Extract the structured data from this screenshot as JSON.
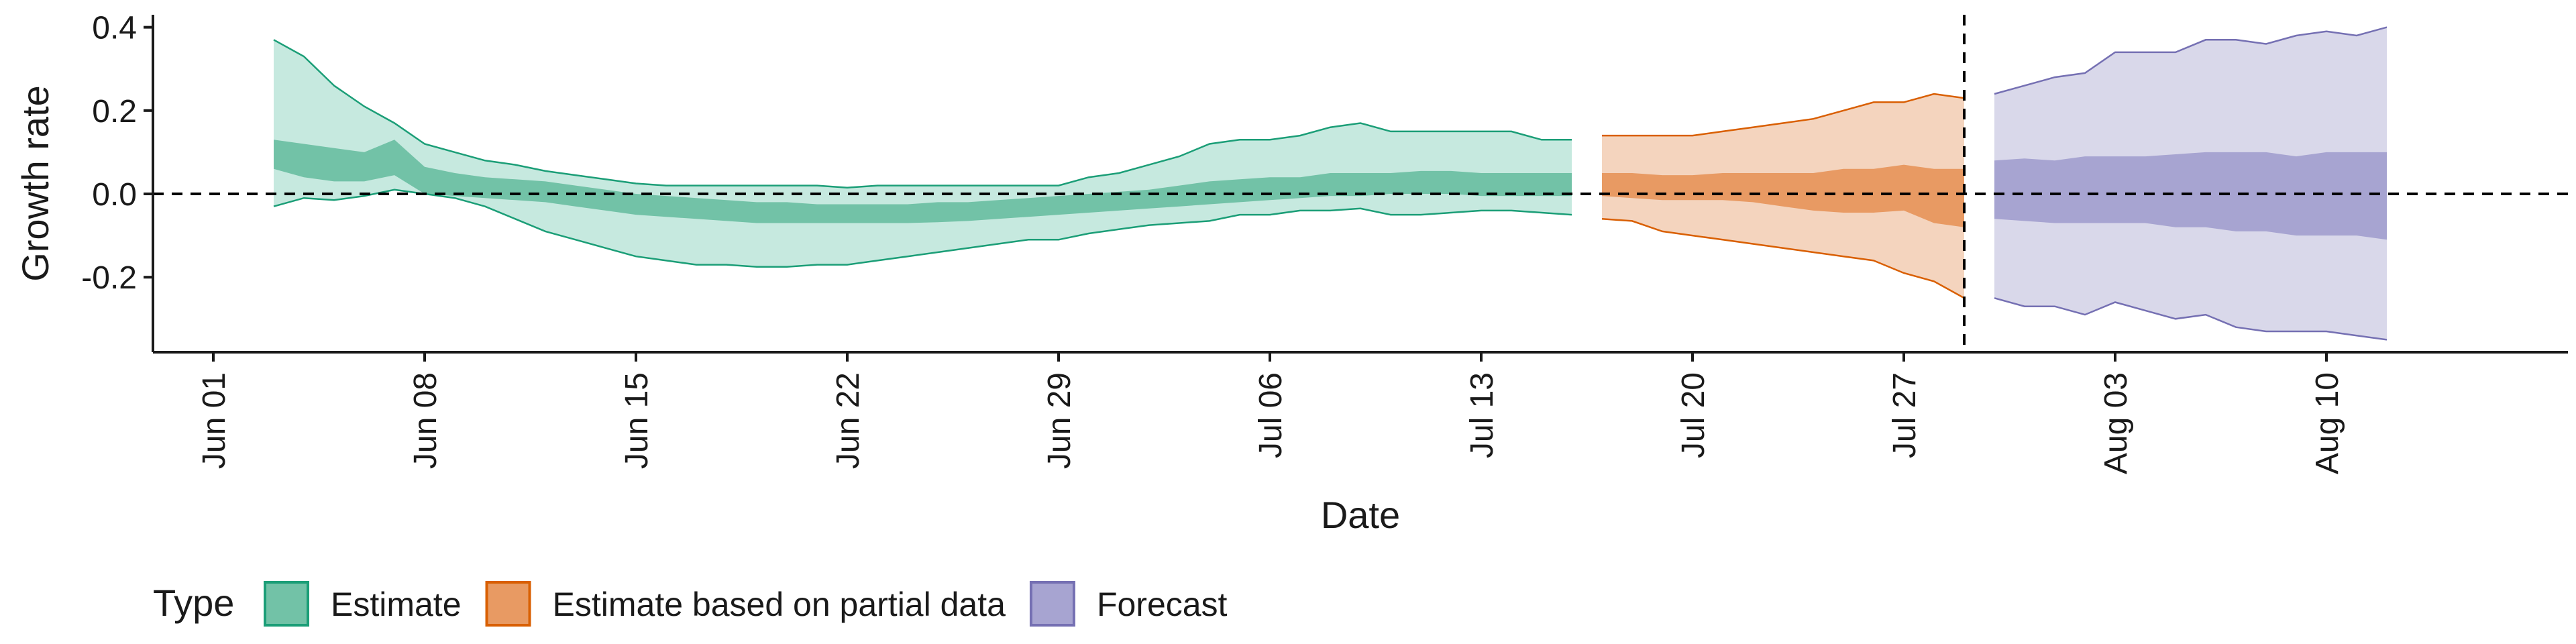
{
  "chart_data": {
    "type": "area",
    "xlabel": "Date",
    "ylabel": "Growth rate",
    "x_scale": "date",
    "xlim": [
      "2020-05-30",
      "2020-08-18"
    ],
    "ylim": [
      -0.38,
      0.43
    ],
    "x_ticks": [
      {
        "date": "2020-06-01",
        "label": "Jun 01"
      },
      {
        "date": "2020-06-08",
        "label": "Jun 08"
      },
      {
        "date": "2020-06-15",
        "label": "Jun 15"
      },
      {
        "date": "2020-06-22",
        "label": "Jun 22"
      },
      {
        "date": "2020-06-29",
        "label": "Jun 29"
      },
      {
        "date": "2020-07-06",
        "label": "Jul 06"
      },
      {
        "date": "2020-07-13",
        "label": "Jul 13"
      },
      {
        "date": "2020-07-20",
        "label": "Jul 20"
      },
      {
        "date": "2020-07-27",
        "label": "Jul 27"
      },
      {
        "date": "2020-08-03",
        "label": "Aug 03"
      },
      {
        "date": "2020-08-10",
        "label": "Aug 10"
      }
    ],
    "y_ticks": [
      {
        "value": 0.4,
        "label": "0.4"
      },
      {
        "value": 0.2,
        "label": "0.2"
      },
      {
        "value": 0.0,
        "label": "0.0"
      },
      {
        "value": -0.2,
        "label": "-0.2"
      }
    ],
    "reference_lines": [
      {
        "axis": "y",
        "value": 0.0,
        "style": "dashed"
      },
      {
        "axis": "x",
        "value": "2020-07-29",
        "style": "dashed"
      }
    ],
    "legend": {
      "title": "Type",
      "position": "bottom-left"
    },
    "series": [
      {
        "name": "Estimate",
        "fill_outer": "#c6e9df",
        "fill_inner": "#72c2a7",
        "line": "#1b9e77",
        "x": [
          "2020-06-03",
          "2020-06-04",
          "2020-06-05",
          "2020-06-06",
          "2020-06-07",
          "2020-06-08",
          "2020-06-09",
          "2020-06-10",
          "2020-06-11",
          "2020-06-12",
          "2020-06-13",
          "2020-06-14",
          "2020-06-15",
          "2020-06-16",
          "2020-06-17",
          "2020-06-18",
          "2020-06-19",
          "2020-06-20",
          "2020-06-21",
          "2020-06-22",
          "2020-06-23",
          "2020-06-24",
          "2020-06-25",
          "2020-06-26",
          "2020-06-27",
          "2020-06-28",
          "2020-06-29",
          "2020-06-30",
          "2020-07-01",
          "2020-07-02",
          "2020-07-03",
          "2020-07-04",
          "2020-07-05",
          "2020-07-06",
          "2020-07-07",
          "2020-07-08",
          "2020-07-09",
          "2020-07-10",
          "2020-07-11",
          "2020-07-12",
          "2020-07-13",
          "2020-07-14",
          "2020-07-15",
          "2020-07-16"
        ],
        "upper90": [
          0.37,
          0.33,
          0.26,
          0.21,
          0.17,
          0.12,
          0.1,
          0.08,
          0.07,
          0.055,
          0.045,
          0.035,
          0.025,
          0.02,
          0.02,
          0.02,
          0.02,
          0.02,
          0.02,
          0.015,
          0.02,
          0.02,
          0.02,
          0.02,
          0.02,
          0.02,
          0.02,
          0.04,
          0.05,
          0.07,
          0.09,
          0.12,
          0.13,
          0.13,
          0.14,
          0.16,
          0.17,
          0.15,
          0.15,
          0.15,
          0.15,
          0.15,
          0.13,
          0.13
        ],
        "upper50": [
          0.13,
          0.12,
          0.11,
          0.1,
          0.13,
          0.065,
          0.05,
          0.04,
          0.035,
          0.03,
          0.02,
          0.01,
          0.0,
          -0.005,
          -0.01,
          -0.015,
          -0.02,
          -0.02,
          -0.025,
          -0.025,
          -0.025,
          -0.025,
          -0.02,
          -0.02,
          -0.015,
          -0.01,
          -0.005,
          0.0,
          0.005,
          0.01,
          0.02,
          0.03,
          0.035,
          0.04,
          0.04,
          0.05,
          0.05,
          0.05,
          0.055,
          0.055,
          0.05,
          0.05,
          0.05,
          0.05
        ],
        "lower50": [
          0.06,
          0.04,
          0.03,
          0.03,
          0.045,
          0.0,
          -0.005,
          -0.01,
          -0.015,
          -0.02,
          -0.03,
          -0.04,
          -0.05,
          -0.055,
          -0.06,
          -0.065,
          -0.07,
          -0.07,
          -0.07,
          -0.07,
          -0.07,
          -0.07,
          -0.068,
          -0.065,
          -0.06,
          -0.055,
          -0.05,
          -0.045,
          -0.04,
          -0.035,
          -0.03,
          -0.025,
          -0.02,
          -0.015,
          -0.01,
          -0.005,
          -0.005,
          0.0,
          0.0,
          0.0,
          -0.005,
          -0.005,
          -0.005,
          -0.005
        ],
        "lower90": [
          -0.03,
          -0.01,
          -0.015,
          -0.005,
          0.01,
          0.0,
          -0.01,
          -0.03,
          -0.06,
          -0.09,
          -0.11,
          -0.13,
          -0.15,
          -0.16,
          -0.17,
          -0.17,
          -0.175,
          -0.175,
          -0.17,
          -0.17,
          -0.16,
          -0.15,
          -0.14,
          -0.13,
          -0.12,
          -0.11,
          -0.11,
          -0.095,
          -0.085,
          -0.075,
          -0.07,
          -0.065,
          -0.05,
          -0.05,
          -0.04,
          -0.04,
          -0.035,
          -0.05,
          -0.05,
          -0.045,
          -0.04,
          -0.04,
          -0.045,
          -0.05
        ]
      },
      {
        "name": "Estimate based on partial data",
        "fill_outer": "#f4d4be",
        "fill_inner": "#e89a63",
        "line": "#d95f02",
        "x": [
          "2020-07-17",
          "2020-07-18",
          "2020-07-19",
          "2020-07-20",
          "2020-07-21",
          "2020-07-22",
          "2020-07-23",
          "2020-07-24",
          "2020-07-25",
          "2020-07-26",
          "2020-07-27",
          "2020-07-28",
          "2020-07-29"
        ],
        "upper90": [
          0.14,
          0.14,
          0.14,
          0.14,
          0.15,
          0.16,
          0.17,
          0.18,
          0.2,
          0.22,
          0.22,
          0.24,
          0.23
        ],
        "upper50": [
          0.05,
          0.05,
          0.045,
          0.045,
          0.05,
          0.05,
          0.05,
          0.05,
          0.06,
          0.06,
          0.07,
          0.06,
          0.06
        ],
        "lower50": [
          -0.005,
          -0.01,
          -0.015,
          -0.015,
          -0.015,
          -0.02,
          -0.03,
          -0.04,
          -0.045,
          -0.045,
          -0.04,
          -0.07,
          -0.08
        ],
        "lower90": [
          -0.06,
          -0.065,
          -0.09,
          -0.1,
          -0.11,
          -0.12,
          -0.13,
          -0.14,
          -0.15,
          -0.16,
          -0.19,
          -0.21,
          -0.25
        ]
      },
      {
        "name": "Forecast",
        "fill_outer": "#d9d8ea",
        "fill_inner": "#a7a4d1",
        "line": "#7570b3",
        "x": [
          "2020-07-30",
          "2020-07-31",
          "2020-08-01",
          "2020-08-02",
          "2020-08-03",
          "2020-08-04",
          "2020-08-05",
          "2020-08-06",
          "2020-08-07",
          "2020-08-08",
          "2020-08-09",
          "2020-08-10",
          "2020-08-11",
          "2020-08-12"
        ],
        "upper90": [
          0.24,
          0.26,
          0.28,
          0.29,
          0.34,
          0.34,
          0.34,
          0.37,
          0.37,
          0.36,
          0.38,
          0.39,
          0.38,
          0.4
        ],
        "upper50": [
          0.08,
          0.085,
          0.08,
          0.09,
          0.09,
          0.09,
          0.095,
          0.1,
          0.1,
          0.1,
          0.09,
          0.1,
          0.1,
          0.1
        ],
        "lower50": [
          -0.06,
          -0.065,
          -0.07,
          -0.07,
          -0.07,
          -0.07,
          -0.08,
          -0.08,
          -0.09,
          -0.09,
          -0.1,
          -0.1,
          -0.1,
          -0.11
        ],
        "lower90": [
          -0.25,
          -0.27,
          -0.27,
          -0.29,
          -0.26,
          -0.28,
          -0.3,
          -0.29,
          -0.32,
          -0.33,
          -0.33,
          -0.33,
          -0.34,
          -0.35
        ]
      }
    ]
  }
}
